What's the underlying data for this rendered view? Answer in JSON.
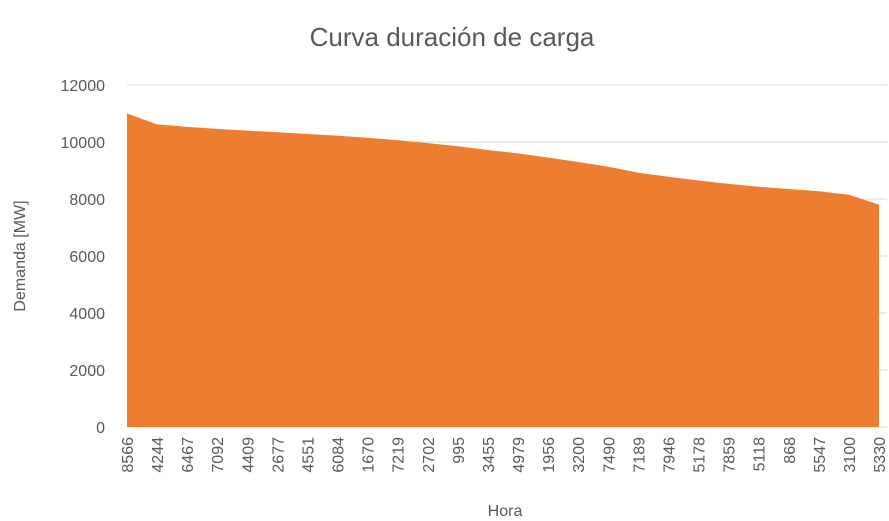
{
  "chart_data": {
    "type": "area",
    "title": "Curva duración de carga",
    "x_label": "Hora",
    "y_label": "Demanda [MW]",
    "categories": [
      "8566",
      "4244",
      "6467",
      "7092",
      "4409",
      "2677",
      "4551",
      "6084",
      "1670",
      "7219",
      "2702",
      "995",
      "3455",
      "4979",
      "1956",
      "3200",
      "7490",
      "7189",
      "7946",
      "5178",
      "7859",
      "5118",
      "868",
      "5547",
      "3100",
      "5330"
    ],
    "series": [
      {
        "name": "Demanda",
        "color": "#ed7d31",
        "values": [
          11000,
          10620,
          10530,
          10460,
          10400,
          10340,
          10280,
          10220,
          10150,
          10060,
          9960,
          9850,
          9720,
          9600,
          9450,
          9300,
          9130,
          8920,
          8780,
          8650,
          8530,
          8430,
          8350,
          8270,
          8150,
          7800
        ]
      }
    ],
    "ylim": [
      0,
      12000
    ],
    "yticks": [
      0,
      2000,
      4000,
      6000,
      8000,
      10000,
      12000
    ],
    "grid": true
  }
}
